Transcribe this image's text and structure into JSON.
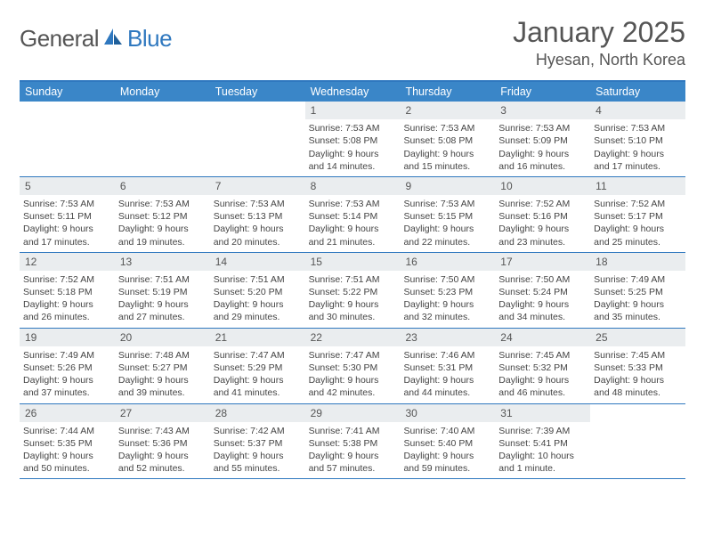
{
  "brand": {
    "name_a": "General",
    "name_b": "Blue"
  },
  "title": "January 2025",
  "location": "Hyesan, North Korea",
  "colors": {
    "header_bg": "#3a86c8",
    "rule": "#2f78bf",
    "daynum_bg": "#eaedef",
    "text": "#444444",
    "page_bg": "#ffffff"
  },
  "dow": [
    "Sunday",
    "Monday",
    "Tuesday",
    "Wednesday",
    "Thursday",
    "Friday",
    "Saturday"
  ],
  "weeks": [
    [
      {
        "n": "",
        "sr": "",
        "ss": "",
        "d1": "",
        "d2": ""
      },
      {
        "n": "",
        "sr": "",
        "ss": "",
        "d1": "",
        "d2": ""
      },
      {
        "n": "",
        "sr": "",
        "ss": "",
        "d1": "",
        "d2": ""
      },
      {
        "n": "1",
        "sr": "Sunrise: 7:53 AM",
        "ss": "Sunset: 5:08 PM",
        "d1": "Daylight: 9 hours",
        "d2": "and 14 minutes."
      },
      {
        "n": "2",
        "sr": "Sunrise: 7:53 AM",
        "ss": "Sunset: 5:08 PM",
        "d1": "Daylight: 9 hours",
        "d2": "and 15 minutes."
      },
      {
        "n": "3",
        "sr": "Sunrise: 7:53 AM",
        "ss": "Sunset: 5:09 PM",
        "d1": "Daylight: 9 hours",
        "d2": "and 16 minutes."
      },
      {
        "n": "4",
        "sr": "Sunrise: 7:53 AM",
        "ss": "Sunset: 5:10 PM",
        "d1": "Daylight: 9 hours",
        "d2": "and 17 minutes."
      }
    ],
    [
      {
        "n": "5",
        "sr": "Sunrise: 7:53 AM",
        "ss": "Sunset: 5:11 PM",
        "d1": "Daylight: 9 hours",
        "d2": "and 17 minutes."
      },
      {
        "n": "6",
        "sr": "Sunrise: 7:53 AM",
        "ss": "Sunset: 5:12 PM",
        "d1": "Daylight: 9 hours",
        "d2": "and 19 minutes."
      },
      {
        "n": "7",
        "sr": "Sunrise: 7:53 AM",
        "ss": "Sunset: 5:13 PM",
        "d1": "Daylight: 9 hours",
        "d2": "and 20 minutes."
      },
      {
        "n": "8",
        "sr": "Sunrise: 7:53 AM",
        "ss": "Sunset: 5:14 PM",
        "d1": "Daylight: 9 hours",
        "d2": "and 21 minutes."
      },
      {
        "n": "9",
        "sr": "Sunrise: 7:53 AM",
        "ss": "Sunset: 5:15 PM",
        "d1": "Daylight: 9 hours",
        "d2": "and 22 minutes."
      },
      {
        "n": "10",
        "sr": "Sunrise: 7:52 AM",
        "ss": "Sunset: 5:16 PM",
        "d1": "Daylight: 9 hours",
        "d2": "and 23 minutes."
      },
      {
        "n": "11",
        "sr": "Sunrise: 7:52 AM",
        "ss": "Sunset: 5:17 PM",
        "d1": "Daylight: 9 hours",
        "d2": "and 25 minutes."
      }
    ],
    [
      {
        "n": "12",
        "sr": "Sunrise: 7:52 AM",
        "ss": "Sunset: 5:18 PM",
        "d1": "Daylight: 9 hours",
        "d2": "and 26 minutes."
      },
      {
        "n": "13",
        "sr": "Sunrise: 7:51 AM",
        "ss": "Sunset: 5:19 PM",
        "d1": "Daylight: 9 hours",
        "d2": "and 27 minutes."
      },
      {
        "n": "14",
        "sr": "Sunrise: 7:51 AM",
        "ss": "Sunset: 5:20 PM",
        "d1": "Daylight: 9 hours",
        "d2": "and 29 minutes."
      },
      {
        "n": "15",
        "sr": "Sunrise: 7:51 AM",
        "ss": "Sunset: 5:22 PM",
        "d1": "Daylight: 9 hours",
        "d2": "and 30 minutes."
      },
      {
        "n": "16",
        "sr": "Sunrise: 7:50 AM",
        "ss": "Sunset: 5:23 PM",
        "d1": "Daylight: 9 hours",
        "d2": "and 32 minutes."
      },
      {
        "n": "17",
        "sr": "Sunrise: 7:50 AM",
        "ss": "Sunset: 5:24 PM",
        "d1": "Daylight: 9 hours",
        "d2": "and 34 minutes."
      },
      {
        "n": "18",
        "sr": "Sunrise: 7:49 AM",
        "ss": "Sunset: 5:25 PM",
        "d1": "Daylight: 9 hours",
        "d2": "and 35 minutes."
      }
    ],
    [
      {
        "n": "19",
        "sr": "Sunrise: 7:49 AM",
        "ss": "Sunset: 5:26 PM",
        "d1": "Daylight: 9 hours",
        "d2": "and 37 minutes."
      },
      {
        "n": "20",
        "sr": "Sunrise: 7:48 AM",
        "ss": "Sunset: 5:27 PM",
        "d1": "Daylight: 9 hours",
        "d2": "and 39 minutes."
      },
      {
        "n": "21",
        "sr": "Sunrise: 7:47 AM",
        "ss": "Sunset: 5:29 PM",
        "d1": "Daylight: 9 hours",
        "d2": "and 41 minutes."
      },
      {
        "n": "22",
        "sr": "Sunrise: 7:47 AM",
        "ss": "Sunset: 5:30 PM",
        "d1": "Daylight: 9 hours",
        "d2": "and 42 minutes."
      },
      {
        "n": "23",
        "sr": "Sunrise: 7:46 AM",
        "ss": "Sunset: 5:31 PM",
        "d1": "Daylight: 9 hours",
        "d2": "and 44 minutes."
      },
      {
        "n": "24",
        "sr": "Sunrise: 7:45 AM",
        "ss": "Sunset: 5:32 PM",
        "d1": "Daylight: 9 hours",
        "d2": "and 46 minutes."
      },
      {
        "n": "25",
        "sr": "Sunrise: 7:45 AM",
        "ss": "Sunset: 5:33 PM",
        "d1": "Daylight: 9 hours",
        "d2": "and 48 minutes."
      }
    ],
    [
      {
        "n": "26",
        "sr": "Sunrise: 7:44 AM",
        "ss": "Sunset: 5:35 PM",
        "d1": "Daylight: 9 hours",
        "d2": "and 50 minutes."
      },
      {
        "n": "27",
        "sr": "Sunrise: 7:43 AM",
        "ss": "Sunset: 5:36 PM",
        "d1": "Daylight: 9 hours",
        "d2": "and 52 minutes."
      },
      {
        "n": "28",
        "sr": "Sunrise: 7:42 AM",
        "ss": "Sunset: 5:37 PM",
        "d1": "Daylight: 9 hours",
        "d2": "and 55 minutes."
      },
      {
        "n": "29",
        "sr": "Sunrise: 7:41 AM",
        "ss": "Sunset: 5:38 PM",
        "d1": "Daylight: 9 hours",
        "d2": "and 57 minutes."
      },
      {
        "n": "30",
        "sr": "Sunrise: 7:40 AM",
        "ss": "Sunset: 5:40 PM",
        "d1": "Daylight: 9 hours",
        "d2": "and 59 minutes."
      },
      {
        "n": "31",
        "sr": "Sunrise: 7:39 AM",
        "ss": "Sunset: 5:41 PM",
        "d1": "Daylight: 10 hours",
        "d2": "and 1 minute."
      },
      {
        "n": "",
        "sr": "",
        "ss": "",
        "d1": "",
        "d2": ""
      }
    ]
  ]
}
